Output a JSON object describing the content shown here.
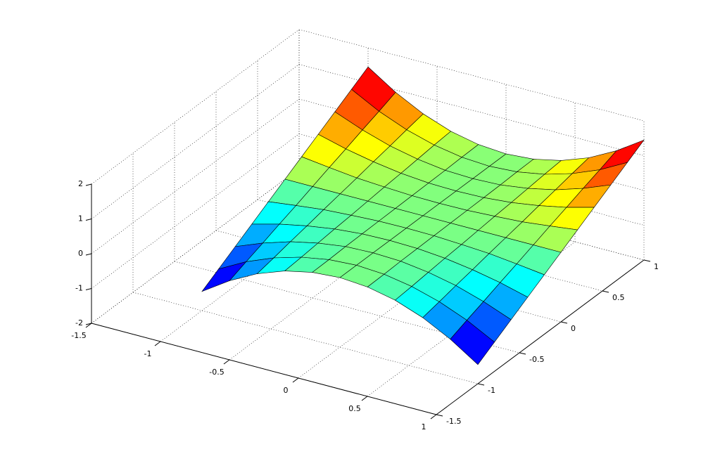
{
  "chart_data": {
    "type": "surface",
    "colormap": "jet",
    "edgecolor": "#000000",
    "grid": true,
    "x": [
      -1,
      -0.8,
      -0.6,
      -0.4,
      -0.2,
      0,
      0.2,
      0.4,
      0.6,
      0.8,
      1
    ],
    "y": [
      -1,
      -0.8,
      -0.6,
      -0.4,
      -0.2,
      0,
      0.2,
      0.4,
      0.6,
      0.8,
      1
    ],
    "z": [
      [
        -1.45,
        -0.93,
        -0.52,
        -0.23,
        -0.06,
        0,
        -0.06,
        -0.23,
        -0.52,
        -0.93,
        -1.45
      ],
      [
        -1.16,
        -0.74,
        -0.42,
        -0.19,
        -0.05,
        0,
        -0.05,
        -0.19,
        -0.42,
        -0.74,
        -1.16
      ],
      [
        -0.87,
        -0.56,
        -0.31,
        -0.14,
        -0.03,
        0,
        -0.03,
        -0.14,
        -0.31,
        -0.56,
        -0.87
      ],
      [
        -0.58,
        -0.37,
        -0.21,
        -0.09,
        -0.02,
        0,
        -0.02,
        -0.09,
        -0.21,
        -0.37,
        -0.58
      ],
      [
        -0.29,
        -0.19,
        -0.1,
        -0.05,
        -0.01,
        0,
        -0.01,
        -0.05,
        -0.1,
        -0.19,
        -0.29
      ],
      [
        0,
        0,
        0,
        0,
        0,
        0,
        0,
        0,
        0,
        0,
        0
      ],
      [
        0.29,
        0.19,
        0.1,
        0.05,
        0.01,
        0,
        0.01,
        0.05,
        0.1,
        0.19,
        0.29
      ],
      [
        0.58,
        0.37,
        0.21,
        0.09,
        0.02,
        0,
        0.02,
        0.09,
        0.21,
        0.37,
        0.58
      ],
      [
        0.87,
        0.56,
        0.31,
        0.14,
        0.03,
        0,
        0.03,
        0.14,
        0.31,
        0.56,
        0.87
      ],
      [
        1.16,
        0.74,
        0.42,
        0.19,
        0.05,
        0,
        0.05,
        0.19,
        0.42,
        0.74,
        1.16
      ],
      [
        1.45,
        0.93,
        0.52,
        0.23,
        0.06,
        0,
        0.06,
        0.23,
        0.52,
        0.93,
        1.45
      ]
    ],
    "xlim": [
      -1.5,
      1
    ],
    "xticks": [
      -1.5,
      -1,
      -0.5,
      0,
      0.5,
      1
    ],
    "ylim": [
      -1.5,
      1
    ],
    "yticks": [
      -1.5,
      -1,
      -0.5,
      0,
      0.5,
      1
    ],
    "zlim": [
      -2,
      2
    ],
    "zticks": [
      -2,
      -1,
      0,
      1,
      2
    ]
  }
}
